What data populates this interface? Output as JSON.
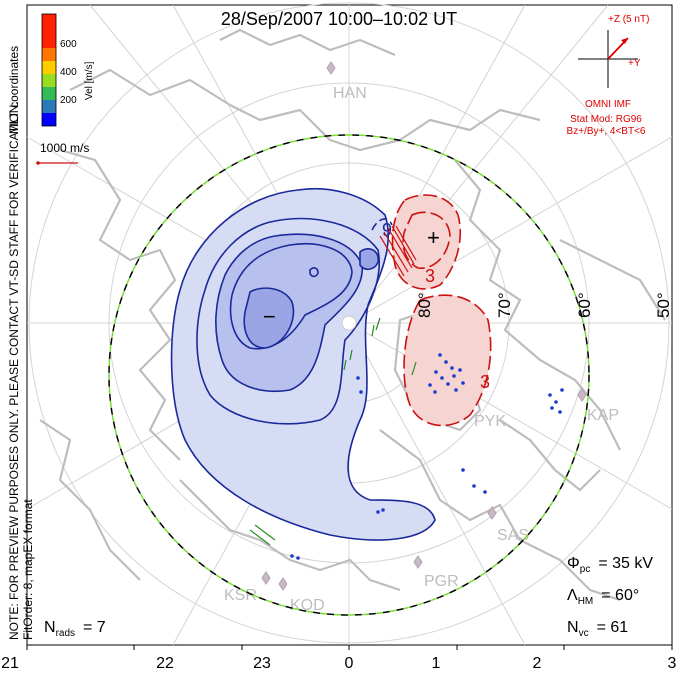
{
  "title": "28/Sep/2007 10:00–10:02 UT",
  "side_notes": {
    "coords": "MLT coordinates",
    "preview": "NOTE: FOR PREVIEW PURPOSES ONLY. PLEASE CONTACT VT-SD STAFF FOR VERIFICATION.",
    "fit": "FitOrder: 8,  mapEX format"
  },
  "velocity_scale": {
    "label": "Vel [m/s]",
    "ticks": [
      "600",
      "400",
      "200"
    ],
    "colors": [
      "#0000ff",
      "#2a7ab8",
      "#33bb55",
      "#99dd22",
      "#ffcc00",
      "#ff7700",
      "#ff2200"
    ]
  },
  "vector_reference": {
    "label": "1000 m/s"
  },
  "imf": {
    "z_label": "+Z (5 nT)",
    "y_label": "+Y",
    "source": "OMNI IMF",
    "model_line1": "Stat Mod: RG96",
    "model_line2": "Bz+/By+, 4<BT<6",
    "color": "#dd0000"
  },
  "latitude_labels": [
    "80°",
    "70°",
    "60°",
    "50°"
  ],
  "radar_sites": [
    "HAN",
    "PYK",
    "KAP",
    "SAS",
    "PGR",
    "KSR",
    "KOD"
  ],
  "contour_labels": {
    "negative_value": "9",
    "positive_value": "3",
    "positive_value_2": "3",
    "minus": "−",
    "plus": "+"
  },
  "stats": {
    "phi_pc": {
      "symbol": "Φ",
      "sub": "pc",
      "value": "= 35 kV"
    },
    "lambda_hm": {
      "symbol": "Λ",
      "sub": "HM",
      "value": "= 60°"
    },
    "n_vc": {
      "symbol": "N",
      "sub": "vc",
      "value": "= 61"
    },
    "n_rads": {
      "symbol": "N",
      "sub": "rads",
      "value": "= 7"
    }
  },
  "mlt_axis": [
    "21",
    "22",
    "23",
    "0",
    "1",
    "2",
    "3"
  ],
  "colors": {
    "negative_fill": "#d7dcf5",
    "negative_inner": "#b8c0ee",
    "negative_core": "#9aa5e6",
    "negative_line": "#1a2a9a",
    "positive_fill": "#f6d4d2",
    "positive_line": "#cc1111",
    "coast": "#bdbdbd",
    "grid": "#d4d4d4",
    "hm_boundary_dash1": "#000000",
    "hm_boundary_dash2": "#77dd33"
  }
}
